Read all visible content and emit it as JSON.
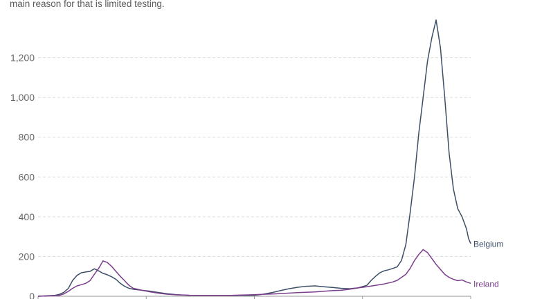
{
  "subtitle": "main reason for that is limited testing.",
  "chart_data": {
    "type": "line",
    "ylim": [
      0,
      1400
    ],
    "y_ticks": [
      0,
      200,
      400,
      600,
      800,
      1000,
      1200
    ],
    "y_tick_labels": [
      "0",
      "200",
      "400",
      "600",
      "800",
      "1,000",
      "1,200"
    ],
    "grid": true,
    "x_index_range": [
      0,
      100
    ],
    "series": [
      {
        "name": "Belgium",
        "color": "#3c4e66",
        "points": [
          [
            0,
            0
          ],
          [
            2,
            2
          ],
          [
            4,
            5
          ],
          [
            5,
            10
          ],
          [
            6,
            20
          ],
          [
            7,
            40
          ],
          [
            8,
            80
          ],
          [
            9,
            105
          ],
          [
            10,
            118
          ],
          [
            11,
            122
          ],
          [
            12,
            125
          ],
          [
            13,
            138
          ],
          [
            14,
            128
          ],
          [
            15,
            115
          ],
          [
            16,
            108
          ],
          [
            17,
            98
          ],
          [
            18,
            85
          ],
          [
            19,
            65
          ],
          [
            20,
            50
          ],
          [
            21,
            40
          ],
          [
            22,
            35
          ],
          [
            24,
            30
          ],
          [
            26,
            25
          ],
          [
            28,
            18
          ],
          [
            30,
            12
          ],
          [
            32,
            8
          ],
          [
            35,
            5
          ],
          [
            40,
            4
          ],
          [
            45,
            4
          ],
          [
            50,
            5
          ],
          [
            52,
            10
          ],
          [
            54,
            18
          ],
          [
            56,
            28
          ],
          [
            58,
            38
          ],
          [
            60,
            45
          ],
          [
            62,
            50
          ],
          [
            64,
            52
          ],
          [
            66,
            48
          ],
          [
            68,
            44
          ],
          [
            70,
            40
          ],
          [
            72,
            38
          ],
          [
            74,
            42
          ],
          [
            76,
            55
          ],
          [
            77,
            80
          ],
          [
            78,
            100
          ],
          [
            79,
            118
          ],
          [
            80,
            128
          ],
          [
            81,
            133
          ],
          [
            82,
            140
          ],
          [
            83,
            148
          ],
          [
            84,
            180
          ],
          [
            85,
            260
          ],
          [
            86,
            420
          ],
          [
            87,
            600
          ],
          [
            88,
            820
          ],
          [
            89,
            1000
          ],
          [
            90,
            1180
          ],
          [
            91,
            1300
          ],
          [
            92,
            1390
          ],
          [
            93,
            1250
          ],
          [
            94,
            1000
          ],
          [
            95,
            720
          ],
          [
            96,
            540
          ],
          [
            97,
            440
          ],
          [
            98,
            400
          ],
          [
            99,
            340
          ],
          [
            99.5,
            290
          ],
          [
            100,
            265
          ]
        ]
      },
      {
        "name": "Ireland",
        "color": "#7a3c8c",
        "points": [
          [
            0,
            0
          ],
          [
            3,
            2
          ],
          [
            5,
            5
          ],
          [
            6,
            12
          ],
          [
            7,
            25
          ],
          [
            8,
            40
          ],
          [
            9,
            52
          ],
          [
            10,
            58
          ],
          [
            11,
            65
          ],
          [
            12,
            78
          ],
          [
            13,
            110
          ],
          [
            14,
            140
          ],
          [
            15,
            178
          ],
          [
            16,
            170
          ],
          [
            17,
            150
          ],
          [
            18,
            125
          ],
          [
            19,
            100
          ],
          [
            20,
            78
          ],
          [
            21,
            55
          ],
          [
            22,
            40
          ],
          [
            24,
            30
          ],
          [
            26,
            22
          ],
          [
            28,
            15
          ],
          [
            30,
            10
          ],
          [
            32,
            7
          ],
          [
            35,
            5
          ],
          [
            40,
            4
          ],
          [
            45,
            5
          ],
          [
            50,
            8
          ],
          [
            55,
            12
          ],
          [
            60,
            18
          ],
          [
            64,
            22
          ],
          [
            68,
            28
          ],
          [
            70,
            30
          ],
          [
            72,
            35
          ],
          [
            74,
            42
          ],
          [
            76,
            48
          ],
          [
            78,
            55
          ],
          [
            80,
            62
          ],
          [
            82,
            72
          ],
          [
            83,
            80
          ],
          [
            84,
            95
          ],
          [
            85,
            110
          ],
          [
            86,
            140
          ],
          [
            87,
            180
          ],
          [
            88,
            210
          ],
          [
            89,
            235
          ],
          [
            90,
            220
          ],
          [
            91,
            190
          ],
          [
            92,
            160
          ],
          [
            93,
            135
          ],
          [
            94,
            110
          ],
          [
            95,
            95
          ],
          [
            96,
            85
          ],
          [
            97,
            78
          ],
          [
            98,
            82
          ],
          [
            99,
            72
          ],
          [
            100,
            65
          ]
        ]
      }
    ]
  }
}
